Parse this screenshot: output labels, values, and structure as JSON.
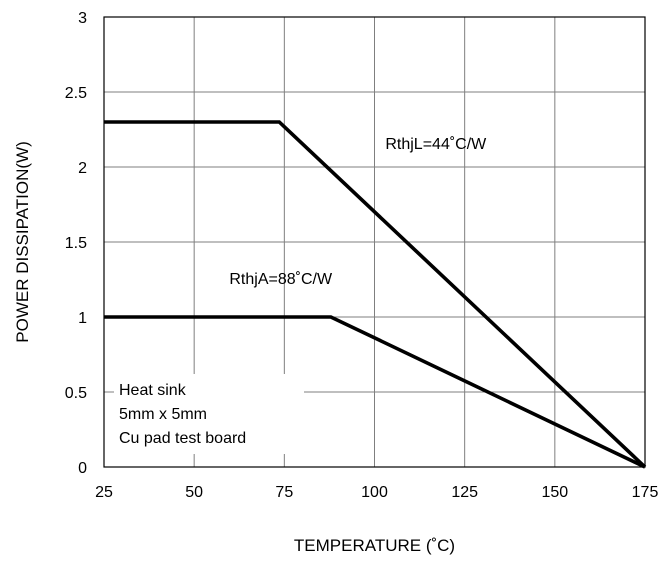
{
  "chart_data": {
    "type": "line",
    "xlabel": "TEMPERATURE (˚C)",
    "ylabel": "POWER DISSIPATION(W)",
    "xlim": [
      25,
      175
    ],
    "ylim": [
      0,
      3
    ],
    "x_ticks": [
      25,
      50,
      75,
      100,
      125,
      150,
      175
    ],
    "y_ticks": [
      0,
      0.5,
      1,
      1.5,
      2,
      2.5,
      3
    ],
    "x_tick_labels": [
      "25",
      "50",
      "75",
      "100",
      "125",
      "150",
      "175"
    ],
    "y_tick_labels": [
      "0",
      "0.5",
      "1",
      "1.5",
      "2",
      "2.5",
      "3"
    ],
    "grid": true,
    "series": [
      {
        "name": "RthjL=44˚C/W",
        "x": [
          25,
          73.6,
          175
        ],
        "y": [
          2.3,
          2.3,
          0
        ]
      },
      {
        "name": "RthjA=88˚C/W",
        "x": [
          25,
          87.9,
          175
        ],
        "y": [
          1.0,
          1.0,
          0
        ]
      }
    ],
    "annotations": [
      {
        "text": "RthjL=44˚C/W",
        "x": 117,
        "y": 2.12
      },
      {
        "text": "RthjA=88˚C/W",
        "x": 74,
        "y": 1.22
      }
    ],
    "note_lines": [
      "Heat sink",
      "5mm x 5mm",
      "Cu pad test board"
    ]
  }
}
